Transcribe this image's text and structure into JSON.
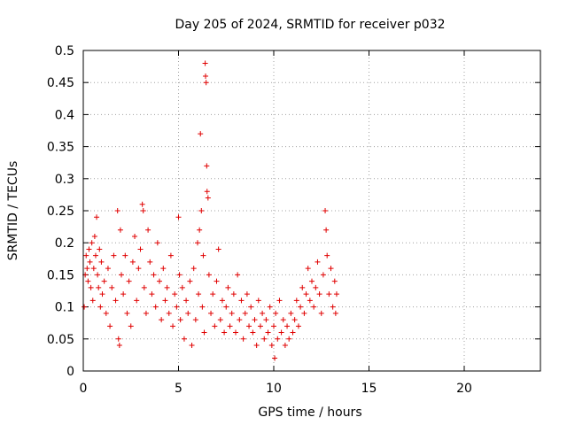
{
  "chart_data": {
    "type": "scatter",
    "title": "Day 205 of 2024, SRMTID for receiver p032",
    "xlabel": "GPS time / hours",
    "ylabel": "SRMTID / TECUs",
    "xlim": [
      0,
      24
    ],
    "ylim": [
      0,
      0.5
    ],
    "xticks": [
      0,
      5,
      10,
      15,
      20
    ],
    "xtick_labels": [
      "0",
      "5",
      "10",
      "15",
      "20"
    ],
    "yticks": [
      0,
      0.05,
      0.1,
      0.15,
      0.2,
      0.25,
      0.3,
      0.35,
      0.4,
      0.45,
      0.5
    ],
    "ytick_labels": [
      "0",
      "0.05",
      "0.1",
      "0.15",
      "0.2",
      "0.25",
      "0.3",
      "0.35",
      "0.4",
      "0.45",
      "0.5"
    ],
    "grid": true,
    "marker": "+",
    "marker_color": "#e00000",
    "series": [
      {
        "name": "SRMTID",
        "points": [
          [
            0.05,
            0.1
          ],
          [
            0.1,
            0.15
          ],
          [
            0.15,
            0.18
          ],
          [
            0.2,
            0.16
          ],
          [
            0.25,
            0.14
          ],
          [
            0.3,
            0.19
          ],
          [
            0.35,
            0.17
          ],
          [
            0.4,
            0.13
          ],
          [
            0.45,
            0.2
          ],
          [
            0.5,
            0.11
          ],
          [
            0.55,
            0.16
          ],
          [
            0.6,
            0.21
          ],
          [
            0.65,
            0.18
          ],
          [
            0.7,
            0.24
          ],
          [
            0.75,
            0.15
          ],
          [
            0.8,
            0.13
          ],
          [
            0.85,
            0.19
          ],
          [
            0.9,
            0.1
          ],
          [
            0.95,
            0.17
          ],
          [
            1.0,
            0.12
          ],
          [
            1.1,
            0.14
          ],
          [
            1.2,
            0.09
          ],
          [
            1.3,
            0.16
          ],
          [
            1.4,
            0.07
          ],
          [
            1.5,
            0.13
          ],
          [
            1.6,
            0.18
          ],
          [
            1.7,
            0.11
          ],
          [
            1.8,
            0.25
          ],
          [
            1.85,
            0.05
          ],
          [
            1.9,
            0.04
          ],
          [
            1.95,
            0.22
          ],
          [
            2.0,
            0.15
          ],
          [
            2.1,
            0.12
          ],
          [
            2.2,
            0.18
          ],
          [
            2.3,
            0.09
          ],
          [
            2.4,
            0.14
          ],
          [
            2.5,
            0.07
          ],
          [
            2.6,
            0.17
          ],
          [
            2.7,
            0.21
          ],
          [
            2.8,
            0.11
          ],
          [
            2.9,
            0.16
          ],
          [
            3.0,
            0.19
          ],
          [
            3.1,
            0.26
          ],
          [
            3.15,
            0.25
          ],
          [
            3.2,
            0.13
          ],
          [
            3.3,
            0.09
          ],
          [
            3.4,
            0.22
          ],
          [
            3.5,
            0.17
          ],
          [
            3.6,
            0.12
          ],
          [
            3.7,
            0.15
          ],
          [
            3.8,
            0.1
          ],
          [
            3.9,
            0.2
          ],
          [
            4.0,
            0.14
          ],
          [
            4.1,
            0.08
          ],
          [
            4.2,
            0.16
          ],
          [
            4.3,
            0.11
          ],
          [
            4.4,
            0.13
          ],
          [
            4.5,
            0.09
          ],
          [
            4.6,
            0.18
          ],
          [
            4.7,
            0.07
          ],
          [
            4.8,
            0.12
          ],
          [
            4.9,
            0.1
          ],
          [
            5.0,
            0.24
          ],
          [
            5.05,
            0.15
          ],
          [
            5.1,
            0.08
          ],
          [
            5.2,
            0.13
          ],
          [
            5.3,
            0.05
          ],
          [
            5.4,
            0.11
          ],
          [
            5.5,
            0.09
          ],
          [
            5.6,
            0.14
          ],
          [
            5.7,
            0.04
          ],
          [
            5.8,
            0.16
          ],
          [
            5.9,
            0.08
          ],
          [
            6.0,
            0.2
          ],
          [
            6.05,
            0.12
          ],
          [
            6.1,
            0.22
          ],
          [
            6.15,
            0.37
          ],
          [
            6.2,
            0.25
          ],
          [
            6.25,
            0.1
          ],
          [
            6.3,
            0.18
          ],
          [
            6.35,
            0.06
          ],
          [
            6.4,
            0.48
          ],
          [
            6.42,
            0.46
          ],
          [
            6.45,
            0.45
          ],
          [
            6.48,
            0.32
          ],
          [
            6.5,
            0.28
          ],
          [
            6.55,
            0.27
          ],
          [
            6.6,
            0.15
          ],
          [
            6.7,
            0.09
          ],
          [
            6.8,
            0.12
          ],
          [
            6.9,
            0.07
          ],
          [
            7.0,
            0.14
          ],
          [
            7.1,
            0.19
          ],
          [
            7.2,
            0.08
          ],
          [
            7.3,
            0.11
          ],
          [
            7.4,
            0.06
          ],
          [
            7.5,
            0.1
          ],
          [
            7.6,
            0.13
          ],
          [
            7.7,
            0.07
          ],
          [
            7.8,
            0.09
          ],
          [
            7.9,
            0.12
          ],
          [
            8.0,
            0.06
          ],
          [
            8.1,
            0.15
          ],
          [
            8.2,
            0.08
          ],
          [
            8.3,
            0.11
          ],
          [
            8.4,
            0.05
          ],
          [
            8.5,
            0.09
          ],
          [
            8.6,
            0.12
          ],
          [
            8.7,
            0.07
          ],
          [
            8.8,
            0.1
          ],
          [
            8.9,
            0.06
          ],
          [
            9.0,
            0.08
          ],
          [
            9.1,
            0.04
          ],
          [
            9.2,
            0.11
          ],
          [
            9.3,
            0.07
          ],
          [
            9.4,
            0.09
          ],
          [
            9.5,
            0.05
          ],
          [
            9.6,
            0.08
          ],
          [
            9.7,
            0.06
          ],
          [
            9.8,
            0.1
          ],
          [
            9.9,
            0.04
          ],
          [
            10.0,
            0.07
          ],
          [
            10.05,
            0.02
          ],
          [
            10.1,
            0.09
          ],
          [
            10.2,
            0.05
          ],
          [
            10.3,
            0.11
          ],
          [
            10.4,
            0.06
          ],
          [
            10.5,
            0.08
          ],
          [
            10.6,
            0.04
          ],
          [
            10.7,
            0.07
          ],
          [
            10.8,
            0.05
          ],
          [
            10.9,
            0.09
          ],
          [
            11.0,
            0.06
          ],
          [
            11.1,
            0.08
          ],
          [
            11.2,
            0.11
          ],
          [
            11.3,
            0.07
          ],
          [
            11.4,
            0.1
          ],
          [
            11.5,
            0.13
          ],
          [
            11.6,
            0.09
          ],
          [
            11.7,
            0.12
          ],
          [
            11.8,
            0.16
          ],
          [
            11.9,
            0.11
          ],
          [
            12.0,
            0.14
          ],
          [
            12.1,
            0.1
          ],
          [
            12.2,
            0.13
          ],
          [
            12.3,
            0.17
          ],
          [
            12.4,
            0.12
          ],
          [
            12.5,
            0.09
          ],
          [
            12.6,
            0.15
          ],
          [
            12.7,
            0.25
          ],
          [
            12.75,
            0.22
          ],
          [
            12.8,
            0.18
          ],
          [
            12.9,
            0.12
          ],
          [
            13.0,
            0.16
          ],
          [
            13.1,
            0.1
          ],
          [
            13.2,
            0.14
          ],
          [
            13.25,
            0.09
          ],
          [
            13.3,
            0.12
          ]
        ]
      }
    ]
  }
}
